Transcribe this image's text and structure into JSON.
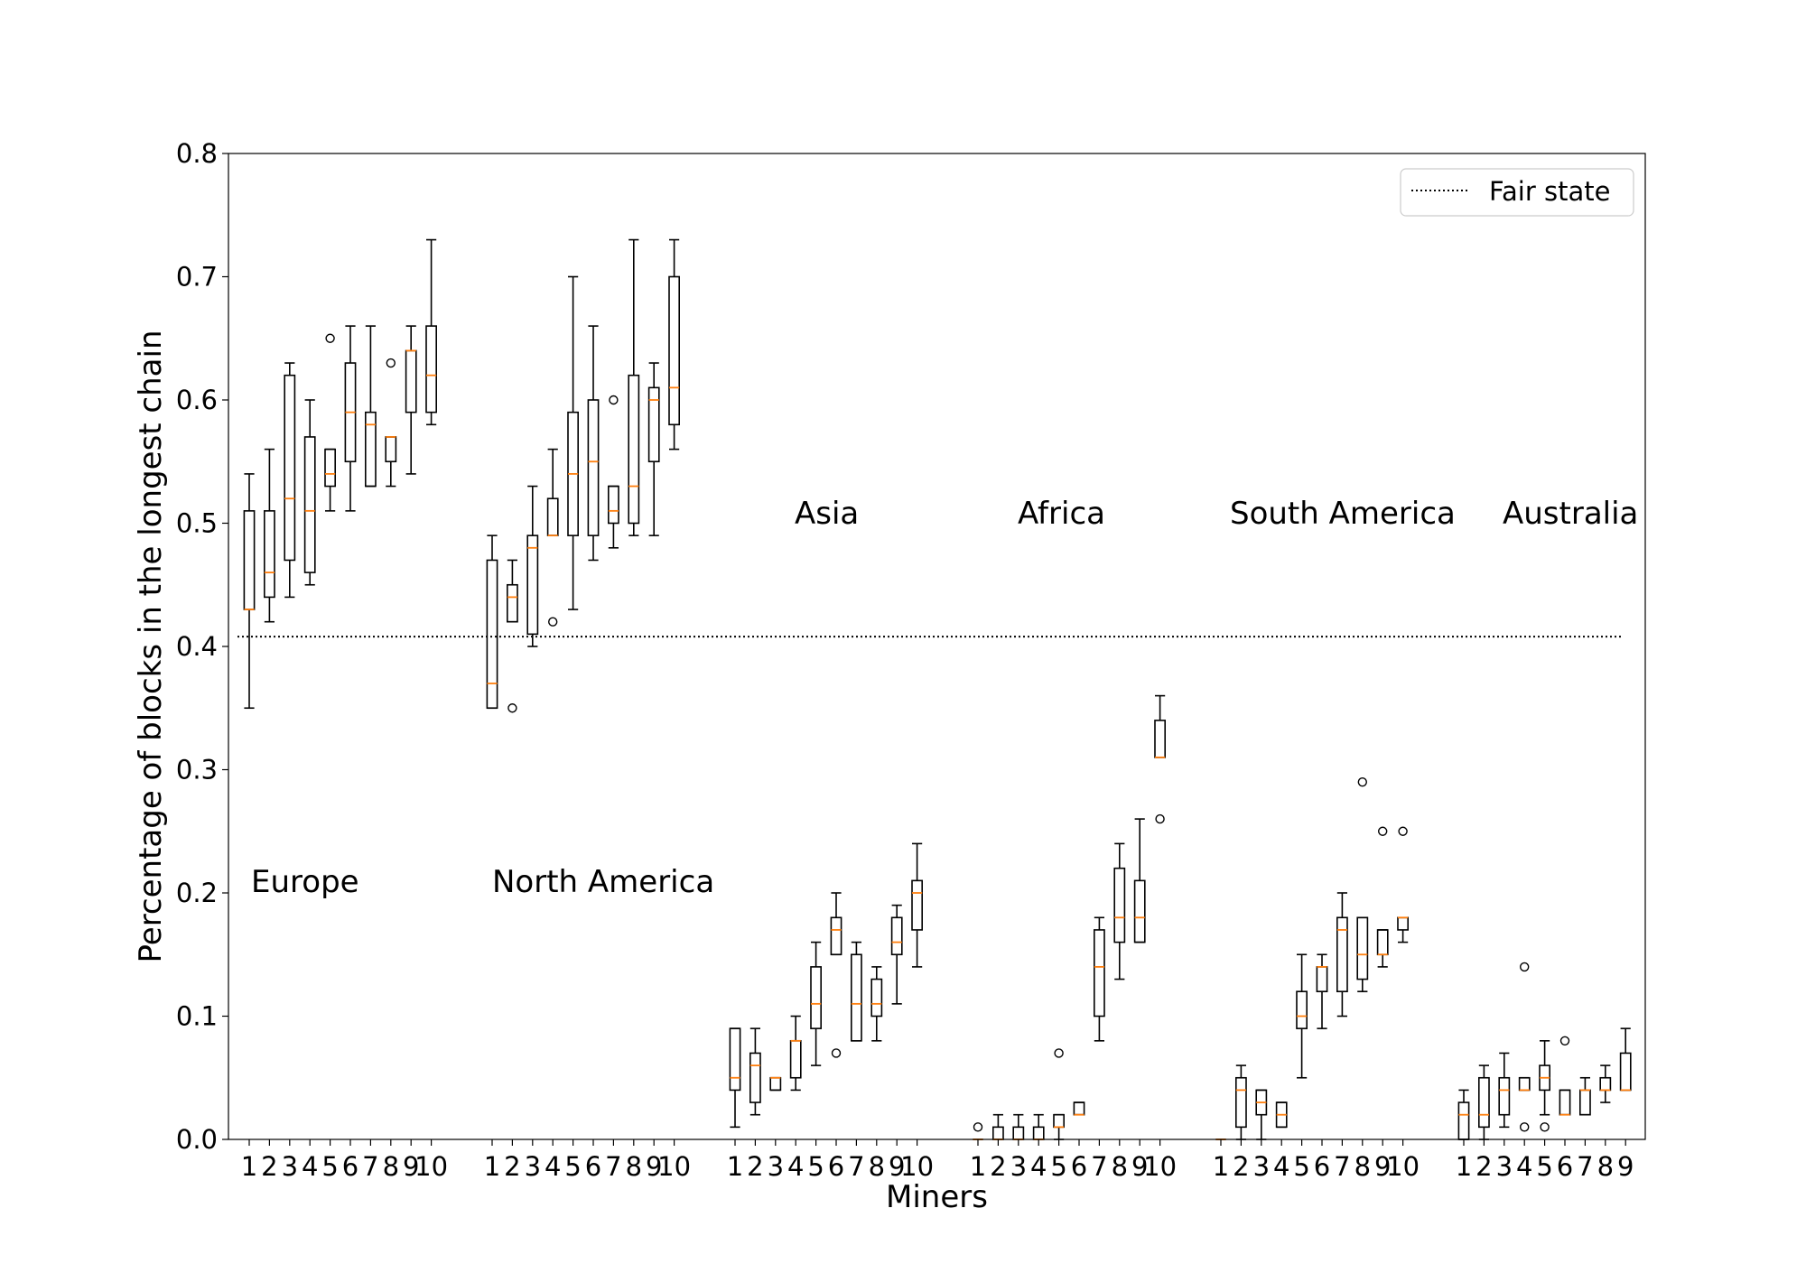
{
  "chart_data": {
    "type": "box",
    "xlabel": "Miners",
    "ylabel": "Percentage of blocks in the longest chain",
    "ylim": [
      0.0,
      0.8
    ],
    "yticks": [
      "0.0",
      "0.1",
      "0.2",
      "0.3",
      "0.4",
      "0.5",
      "0.6",
      "0.7",
      "0.8"
    ],
    "grid": false,
    "legend": {
      "position": "top-right",
      "entries": [
        {
          "label": "Fair state",
          "style": "dotted"
        }
      ]
    },
    "reference_line": {
      "name": "Fair state",
      "y": 0.408
    },
    "colors": {
      "box": "#000000",
      "median": "#ff7f0e",
      "reference": "#000000"
    },
    "groups": [
      {
        "region": "Europe",
        "tick_labels": [
          "1",
          "2",
          "3",
          "4",
          "5",
          "6",
          "7",
          "8",
          "9",
          "10"
        ],
        "boxes": [
          {
            "miner": 1,
            "wl": 0.35,
            "q1": 0.43,
            "med": 0.43,
            "q3": 0.51,
            "wh": 0.54,
            "fliers": []
          },
          {
            "miner": 2,
            "wl": 0.42,
            "q1": 0.44,
            "med": 0.46,
            "q3": 0.51,
            "wh": 0.56,
            "fliers": []
          },
          {
            "miner": 3,
            "wl": 0.44,
            "q1": 0.47,
            "med": 0.52,
            "q3": 0.62,
            "wh": 0.63,
            "fliers": []
          },
          {
            "miner": 4,
            "wl": 0.45,
            "q1": 0.46,
            "med": 0.51,
            "q3": 0.57,
            "wh": 0.6,
            "fliers": []
          },
          {
            "miner": 5,
            "wl": 0.51,
            "q1": 0.53,
            "med": 0.54,
            "q3": 0.56,
            "wh": 0.56,
            "fliers": [
              0.65
            ]
          },
          {
            "miner": 6,
            "wl": 0.51,
            "q1": 0.55,
            "med": 0.59,
            "q3": 0.63,
            "wh": 0.66,
            "fliers": []
          },
          {
            "miner": 7,
            "wl": 0.53,
            "q1": 0.53,
            "med": 0.58,
            "q3": 0.59,
            "wh": 0.66,
            "fliers": []
          },
          {
            "miner": 8,
            "wl": 0.53,
            "q1": 0.55,
            "med": 0.57,
            "q3": 0.57,
            "wh": 0.57,
            "fliers": [
              0.63
            ]
          },
          {
            "miner": 9,
            "wl": 0.54,
            "q1": 0.59,
            "med": 0.64,
            "q3": 0.64,
            "wh": 0.66,
            "fliers": []
          },
          {
            "miner": 10,
            "wl": 0.58,
            "q1": 0.59,
            "med": 0.62,
            "q3": 0.66,
            "wh": 0.73,
            "fliers": []
          }
        ]
      },
      {
        "region": "North America",
        "tick_labels": [
          "1",
          "2",
          "3",
          "4",
          "5",
          "6",
          "7",
          "8",
          "9",
          "10"
        ],
        "boxes": [
          {
            "miner": 1,
            "wl": 0.35,
            "q1": 0.35,
            "med": 0.37,
            "q3": 0.47,
            "wh": 0.49,
            "fliers": []
          },
          {
            "miner": 2,
            "wl": 0.42,
            "q1": 0.42,
            "med": 0.44,
            "q3": 0.45,
            "wh": 0.47,
            "fliers": [
              0.35
            ]
          },
          {
            "miner": 3,
            "wl": 0.4,
            "q1": 0.41,
            "med": 0.48,
            "q3": 0.49,
            "wh": 0.53,
            "fliers": []
          },
          {
            "miner": 4,
            "wl": 0.49,
            "q1": 0.49,
            "med": 0.49,
            "q3": 0.52,
            "wh": 0.56,
            "fliers": [
              0.42
            ]
          },
          {
            "miner": 5,
            "wl": 0.43,
            "q1": 0.49,
            "med": 0.54,
            "q3": 0.59,
            "wh": 0.7,
            "fliers": []
          },
          {
            "miner": 6,
            "wl": 0.47,
            "q1": 0.49,
            "med": 0.55,
            "q3": 0.6,
            "wh": 0.66,
            "fliers": []
          },
          {
            "miner": 7,
            "wl": 0.48,
            "q1": 0.5,
            "med": 0.51,
            "q3": 0.53,
            "wh": 0.53,
            "fliers": [
              0.6
            ]
          },
          {
            "miner": 8,
            "wl": 0.49,
            "q1": 0.5,
            "med": 0.53,
            "q3": 0.62,
            "wh": 0.73,
            "fliers": []
          },
          {
            "miner": 9,
            "wl": 0.49,
            "q1": 0.55,
            "med": 0.6,
            "q3": 0.61,
            "wh": 0.63,
            "fliers": []
          },
          {
            "miner": 10,
            "wl": 0.56,
            "q1": 0.58,
            "med": 0.61,
            "q3": 0.7,
            "wh": 0.73,
            "fliers": []
          }
        ]
      },
      {
        "region": "Asia",
        "tick_labels": [
          "1",
          "2",
          "3",
          "4",
          "5",
          "6",
          "7",
          "8",
          "9",
          "10"
        ],
        "boxes": [
          {
            "miner": 1,
            "wl": 0.01,
            "q1": 0.04,
            "med": 0.05,
            "q3": 0.09,
            "wh": 0.09,
            "fliers": []
          },
          {
            "miner": 2,
            "wl": 0.02,
            "q1": 0.03,
            "med": 0.06,
            "q3": 0.07,
            "wh": 0.09,
            "fliers": []
          },
          {
            "miner": 3,
            "wl": 0.04,
            "q1": 0.04,
            "med": 0.05,
            "q3": 0.05,
            "wh": 0.05,
            "fliers": []
          },
          {
            "miner": 4,
            "wl": 0.04,
            "q1": 0.05,
            "med": 0.08,
            "q3": 0.08,
            "wh": 0.1,
            "fliers": []
          },
          {
            "miner": 5,
            "wl": 0.06,
            "q1": 0.09,
            "med": 0.11,
            "q3": 0.14,
            "wh": 0.16,
            "fliers": []
          },
          {
            "miner": 6,
            "wl": 0.15,
            "q1": 0.15,
            "med": 0.17,
            "q3": 0.18,
            "wh": 0.2,
            "fliers": [
              0.07
            ]
          },
          {
            "miner": 7,
            "wl": 0.08,
            "q1": 0.08,
            "med": 0.11,
            "q3": 0.15,
            "wh": 0.16,
            "fliers": []
          },
          {
            "miner": 8,
            "wl": 0.08,
            "q1": 0.1,
            "med": 0.11,
            "q3": 0.13,
            "wh": 0.14,
            "fliers": []
          },
          {
            "miner": 9,
            "wl": 0.11,
            "q1": 0.15,
            "med": 0.16,
            "q3": 0.18,
            "wh": 0.19,
            "fliers": []
          },
          {
            "miner": 10,
            "wl": 0.14,
            "q1": 0.17,
            "med": 0.2,
            "q3": 0.21,
            "wh": 0.24,
            "fliers": []
          }
        ]
      },
      {
        "region": "Africa",
        "tick_labels": [
          "1",
          "2",
          "3",
          "4",
          "5",
          "6",
          "7",
          "8",
          "9",
          "10"
        ],
        "boxes": [
          {
            "miner": 1,
            "wl": 0.0,
            "q1": 0.0,
            "med": 0.0,
            "q3": 0.0,
            "wh": 0.0,
            "fliers": [
              0.01
            ]
          },
          {
            "miner": 2,
            "wl": 0.0,
            "q1": 0.0,
            "med": 0.0,
            "q3": 0.01,
            "wh": 0.02,
            "fliers": []
          },
          {
            "miner": 3,
            "wl": 0.0,
            "q1": 0.0,
            "med": 0.0,
            "q3": 0.01,
            "wh": 0.02,
            "fliers": []
          },
          {
            "miner": 4,
            "wl": 0.0,
            "q1": 0.0,
            "med": 0.0,
            "q3": 0.01,
            "wh": 0.02,
            "fliers": []
          },
          {
            "miner": 5,
            "wl": 0.0,
            "q1": 0.01,
            "med": 0.01,
            "q3": 0.02,
            "wh": 0.02,
            "fliers": [
              0.07
            ]
          },
          {
            "miner": 6,
            "wl": 0.02,
            "q1": 0.02,
            "med": 0.02,
            "q3": 0.03,
            "wh": 0.03,
            "fliers": []
          },
          {
            "miner": 7,
            "wl": 0.08,
            "q1": 0.1,
            "med": 0.14,
            "q3": 0.17,
            "wh": 0.18,
            "fliers": []
          },
          {
            "miner": 8,
            "wl": 0.13,
            "q1": 0.16,
            "med": 0.18,
            "q3": 0.22,
            "wh": 0.24,
            "fliers": []
          },
          {
            "miner": 9,
            "wl": 0.16,
            "q1": 0.16,
            "med": 0.18,
            "q3": 0.21,
            "wh": 0.26,
            "fliers": []
          },
          {
            "miner": 10,
            "wl": 0.31,
            "q1": 0.31,
            "med": 0.31,
            "q3": 0.34,
            "wh": 0.36,
            "fliers": [
              0.26
            ]
          }
        ]
      },
      {
        "region": "South America",
        "tick_labels": [
          "1",
          "2",
          "3",
          "4",
          "5",
          "6",
          "7",
          "8",
          "9",
          "10"
        ],
        "boxes": [
          {
            "miner": 1,
            "wl": 0.0,
            "q1": 0.0,
            "med": 0.0,
            "q3": 0.0,
            "wh": 0.0,
            "fliers": []
          },
          {
            "miner": 2,
            "wl": 0.0,
            "q1": 0.01,
            "med": 0.04,
            "q3": 0.05,
            "wh": 0.06,
            "fliers": []
          },
          {
            "miner": 3,
            "wl": 0.0,
            "q1": 0.02,
            "med": 0.03,
            "q3": 0.04,
            "wh": 0.04,
            "fliers": []
          },
          {
            "miner": 4,
            "wl": 0.01,
            "q1": 0.01,
            "med": 0.02,
            "q3": 0.03,
            "wh": 0.03,
            "fliers": []
          },
          {
            "miner": 5,
            "wl": 0.05,
            "q1": 0.09,
            "med": 0.1,
            "q3": 0.12,
            "wh": 0.15,
            "fliers": []
          },
          {
            "miner": 6,
            "wl": 0.09,
            "q1": 0.12,
            "med": 0.14,
            "q3": 0.14,
            "wh": 0.15,
            "fliers": []
          },
          {
            "miner": 7,
            "wl": 0.1,
            "q1": 0.12,
            "med": 0.17,
            "q3": 0.18,
            "wh": 0.2,
            "fliers": []
          },
          {
            "miner": 8,
            "wl": 0.12,
            "q1": 0.13,
            "med": 0.15,
            "q3": 0.18,
            "wh": 0.18,
            "fliers": [
              0.29
            ]
          },
          {
            "miner": 9,
            "wl": 0.14,
            "q1": 0.15,
            "med": 0.15,
            "q3": 0.17,
            "wh": 0.17,
            "fliers": [
              0.25
            ]
          },
          {
            "miner": 10,
            "wl": 0.16,
            "q1": 0.17,
            "med": 0.18,
            "q3": 0.18,
            "wh": 0.18,
            "fliers": [
              0.25
            ]
          }
        ]
      },
      {
        "region": "Australia",
        "tick_labels": [
          "1",
          "2",
          "3",
          "4",
          "5",
          "6",
          "7",
          "8",
          "9"
        ],
        "boxes": [
          {
            "miner": 1,
            "wl": 0.0,
            "q1": 0.0,
            "med": 0.02,
            "q3": 0.03,
            "wh": 0.04,
            "fliers": []
          },
          {
            "miner": 2,
            "wl": 0.0,
            "q1": 0.01,
            "med": 0.02,
            "q3": 0.05,
            "wh": 0.06,
            "fliers": []
          },
          {
            "miner": 3,
            "wl": 0.01,
            "q1": 0.02,
            "med": 0.04,
            "q3": 0.05,
            "wh": 0.07,
            "fliers": []
          },
          {
            "miner": 4,
            "wl": 0.04,
            "q1": 0.04,
            "med": 0.04,
            "q3": 0.05,
            "wh": 0.05,
            "fliers": [
              0.14,
              0.01
            ]
          },
          {
            "miner": 5,
            "wl": 0.02,
            "q1": 0.04,
            "med": 0.05,
            "q3": 0.06,
            "wh": 0.08,
            "fliers": [
              0.01
            ]
          },
          {
            "miner": 6,
            "wl": 0.02,
            "q1": 0.02,
            "med": 0.02,
            "q3": 0.04,
            "wh": 0.04,
            "fliers": [
              0.08
            ]
          },
          {
            "miner": 7,
            "wl": 0.02,
            "q1": 0.02,
            "med": 0.04,
            "q3": 0.04,
            "wh": 0.05,
            "fliers": []
          },
          {
            "miner": 8,
            "wl": 0.03,
            "q1": 0.04,
            "med": 0.04,
            "q3": 0.05,
            "wh": 0.06,
            "fliers": []
          },
          {
            "miner": 9,
            "wl": 0.04,
            "q1": 0.04,
            "med": 0.04,
            "q3": 0.07,
            "wh": 0.09,
            "fliers": []
          }
        ]
      }
    ]
  }
}
